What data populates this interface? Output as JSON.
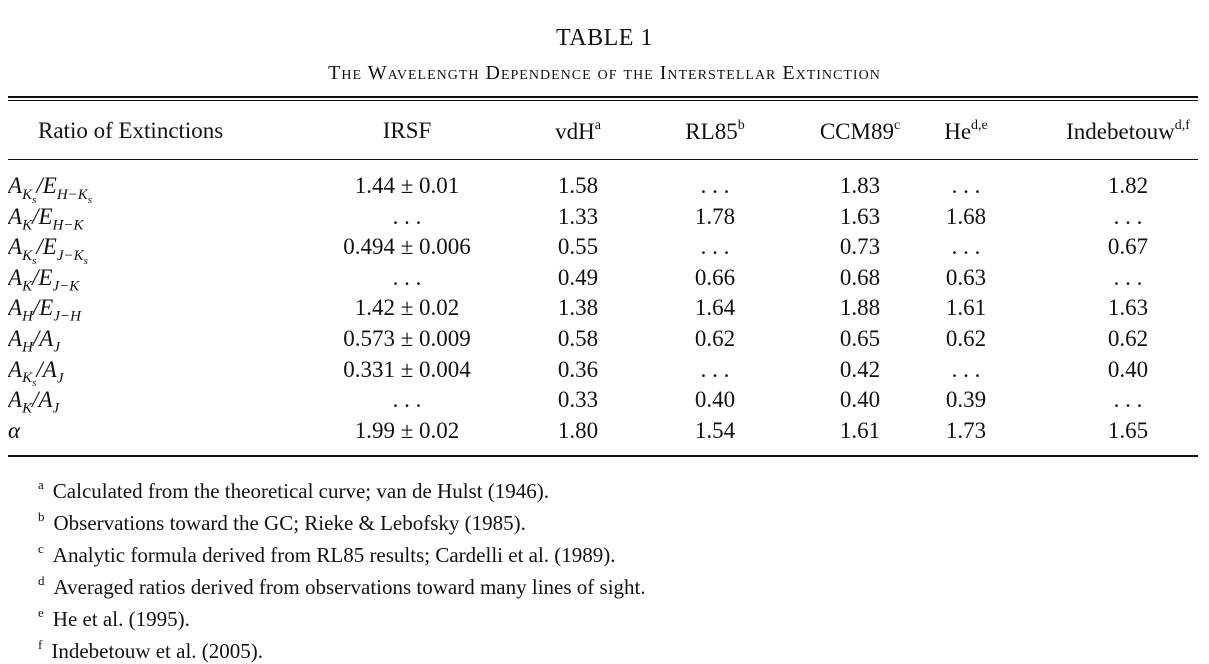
{
  "table_title": "TABLE 1",
  "table_subtitle": "The Wavelength Dependence of the Interstellar Extinction",
  "columns": [
    {
      "label": "Ratio of Extinctions",
      "sup": ""
    },
    {
      "label": "IRSF",
      "sup": ""
    },
    {
      "label": "vdH",
      "sup": "a"
    },
    {
      "label": "RL85",
      "sup": "b"
    },
    {
      "label": "CCM89",
      "sup": "c"
    },
    {
      "label": "He",
      "sup": "d,e"
    },
    {
      "label": "Indebetouw",
      "sup": "d,f"
    }
  ],
  "rows": [
    {
      "label": "A_Ks/E_H−Ks",
      "values": [
        "1.44 ± 0.01",
        "1.58",
        ". . .",
        "1.83",
        ". . .",
        "1.82"
      ]
    },
    {
      "label": "A_K/E_H−K",
      "values": [
        ". . .",
        "1.33",
        "1.78",
        "1.63",
        "1.68",
        ". . ."
      ]
    },
    {
      "label": "A_Ks/E_J−Ks",
      "values": [
        "0.494 ± 0.006",
        "0.55",
        ". . .",
        "0.73",
        ". . .",
        "0.67"
      ]
    },
    {
      "label": "A_K/E_J−K",
      "values": [
        ". . .",
        "0.49",
        "0.66",
        "0.68",
        "0.63",
        ". . ."
      ]
    },
    {
      "label": "A_H/E_J−H",
      "values": [
        "1.42 ± 0.02",
        "1.38",
        "1.64",
        "1.88",
        "1.61",
        "1.63"
      ]
    },
    {
      "label": "A_H/A_J",
      "values": [
        "0.573 ± 0.009",
        "0.58",
        "0.62",
        "0.65",
        "0.62",
        "0.62"
      ]
    },
    {
      "label": "A_Ks/A_J",
      "values": [
        "0.331 ± 0.004",
        "0.36",
        ". . .",
        "0.42",
        ". . .",
        "0.40"
      ]
    },
    {
      "label": "A_K/A_J",
      "values": [
        ". . .",
        "0.33",
        "0.40",
        "0.40",
        "0.39",
        ". . ."
      ]
    },
    {
      "label": "α",
      "values": [
        "1.99 ± 0.02",
        "1.80",
        "1.54",
        "1.61",
        "1.73",
        "1.65"
      ]
    }
  ],
  "footnotes": [
    {
      "mark": "a",
      "text": "Calculated from the theoretical curve; van de Hulst (1946)."
    },
    {
      "mark": "b",
      "text": "Observations toward the GC; Rieke & Lebofsky (1985)."
    },
    {
      "mark": "c",
      "text": "Analytic formula derived from RL85 results; Cardelli et al. (1989)."
    },
    {
      "mark": "d",
      "text": "Averaged ratios derived from observations toward many lines of sight."
    },
    {
      "mark": "e",
      "text": "He et al. (1995)."
    },
    {
      "mark": "f",
      "text": "Indebetouw et al. (2005)."
    }
  ]
}
